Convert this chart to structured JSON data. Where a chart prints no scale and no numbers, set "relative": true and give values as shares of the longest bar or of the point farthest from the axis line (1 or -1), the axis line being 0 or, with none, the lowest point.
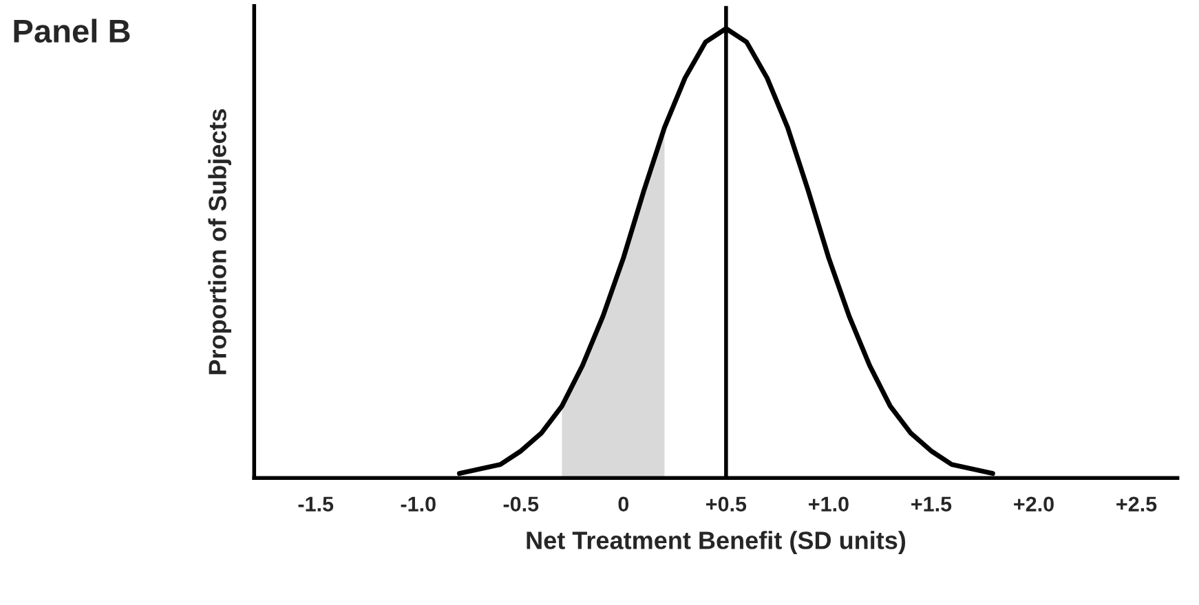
{
  "chart_data": {
    "type": "line",
    "title": "Panel B",
    "xlabel": "Net Treatment Benefit (SD units)",
    "ylabel": "Proportion of Subjects",
    "relative": true,
    "x": [
      -0.8,
      -0.7,
      -0.6,
      -0.5,
      -0.4,
      -0.3,
      -0.2,
      -0.1,
      0,
      0.1,
      0.2,
      0.3,
      0.4,
      0.5,
      0.6,
      0.7,
      0.8,
      0.9,
      1.0,
      1.1,
      1.2,
      1.3,
      1.4,
      1.5,
      1.6,
      1.7,
      1.8
    ],
    "series": [
      {
        "type": "area",
        "color": "#d9d9d9",
        "x": [
          -0.3,
          -0.2,
          -0.1,
          0,
          0.1,
          0.2
        ],
        "values": [
          0.16,
          0.25,
          0.36,
          0.49,
          0.64,
          0.78
        ]
      },
      {
        "color": "#000000",
        "values": [
          0.01,
          0.02,
          0.03,
          0.06,
          0.1,
          0.16,
          0.25,
          0.36,
          0.49,
          0.64,
          0.78,
          0.89,
          0.97,
          1,
          0.97,
          0.89,
          0.78,
          0.64,
          0.49,
          0.36,
          0.25,
          0.16,
          0.1,
          0.06,
          0.03,
          0.02,
          0.01
        ]
      }
    ],
    "xlim": [
      -1.8,
      2.7
    ],
    "xticks": [
      -1.5,
      {
        "value": -1.0,
        "label": "-1.0"
      },
      -0.5,
      0,
      {
        "value": 0.5,
        "label": "+0.5"
      },
      {
        "value": 1.0,
        "label": "+1.0"
      },
      {
        "value": 1.5,
        "label": "+1.5"
      },
      {
        "value": 2.0,
        "label": "+2.0"
      },
      {
        "value": 2.5,
        "label": "+2.5"
      }
    ],
    "ref_lines": [
      {
        "axis": "x",
        "value": 0.5,
        "color": "#000000"
      }
    ],
    "grid": false,
    "legend": false,
    "marker": "none",
    "line_style": "solid"
  }
}
